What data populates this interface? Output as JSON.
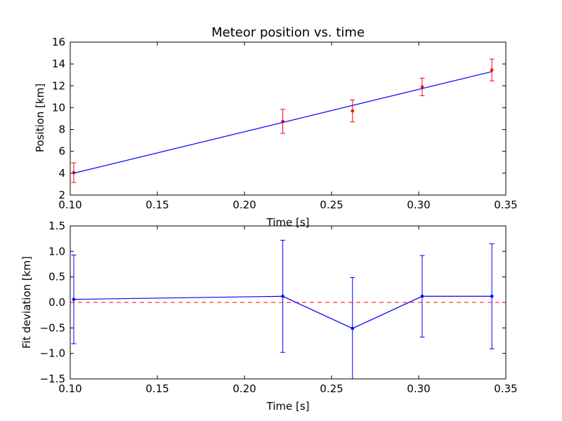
{
  "chart_data": [
    {
      "type": "line",
      "title": "Meteor position vs. time",
      "xlabel": "Time [s]",
      "ylabel": "Position [km]",
      "xlim": [
        0.1,
        0.35
      ],
      "ylim": [
        2,
        16
      ],
      "xticks": [
        "0.10",
        "0.15",
        "0.20",
        "0.25",
        "0.30",
        "0.35"
      ],
      "yticks": [
        "2",
        "4",
        "6",
        "8",
        "10",
        "12",
        "14",
        "16"
      ],
      "grid": false,
      "series": [
        {
          "style": "points-with-errorbars",
          "color": "#ff0000",
          "x": [
            0.102,
            0.222,
            0.262,
            0.302,
            0.342
          ],
          "y": [
            4.05,
            8.75,
            9.7,
            11.9,
            13.45
          ],
          "yerr": [
            0.9,
            1.1,
            1.0,
            0.8,
            1.0
          ]
        },
        {
          "style": "fit-line",
          "color": "#0000ff",
          "x": [
            0.102,
            0.342
          ],
          "y": [
            4.0,
            13.3
          ]
        }
      ]
    },
    {
      "type": "line",
      "title": "",
      "xlabel": "Time [s]",
      "ylabel": "Fit deviation [km]",
      "xlim": [
        0.1,
        0.35
      ],
      "ylim": [
        -1.5,
        1.5
      ],
      "xticks": [
        "0.10",
        "0.15",
        "0.20",
        "0.25",
        "0.30",
        "0.35"
      ],
      "yticks": [
        "−1.5",
        "−1.0",
        "−0.5",
        "0.0",
        "0.5",
        "1.0",
        "1.5"
      ],
      "grid": false,
      "reference_line": {
        "y": 0.0,
        "color": "#ff0000",
        "style": "dashed"
      },
      "series": [
        {
          "style": "line-points-with-errorbars",
          "color": "#0000ff",
          "x": [
            0.102,
            0.222,
            0.262,
            0.302,
            0.342
          ],
          "y": [
            0.06,
            0.12,
            -0.51,
            0.12,
            0.12
          ],
          "yerr": [
            0.87,
            1.1,
            1.0,
            0.8,
            1.03
          ]
        }
      ]
    }
  ]
}
